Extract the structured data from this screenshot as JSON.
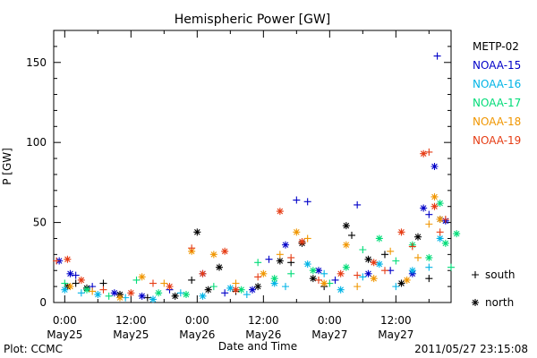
{
  "chart_data": {
    "type": "scatter",
    "title": "Hemispheric Power [GW]",
    "xlabel": "Date and Time",
    "ylabel": "P [GW]",
    "ylim": [
      0,
      170
    ],
    "yticks": [
      0,
      50,
      100,
      150
    ],
    "xlim_hours": [
      -2,
      70
    ],
    "xticks": [
      {
        "hour": 0,
        "time": "0:00",
        "day": "May25"
      },
      {
        "hour": 12,
        "time": "12:00",
        "day": "May25"
      },
      {
        "hour": 24,
        "time": "0:00",
        "day": "May26"
      },
      {
        "hour": 36,
        "time": "12:00",
        "day": "May26"
      },
      {
        "hour": 48,
        "time": "0:00",
        "day": "May27"
      },
      {
        "hour": 60,
        "time": "12:00",
        "day": "May27"
      }
    ],
    "legend_position": "right",
    "marker_legend": [
      {
        "symbol": "+",
        "label": "south"
      },
      {
        "symbol": "*",
        "label": "north"
      }
    ],
    "footer_left": "Plot: CCMC",
    "footer_right": "2011/05/27 23:15:08",
    "series": [
      {
        "name": "METP-02",
        "color": "#000000",
        "points": [
          {
            "h": 0.5,
            "y": 10,
            "m": "*"
          },
          {
            "h": 2,
            "y": 12,
            "m": "+"
          },
          {
            "h": 4,
            "y": 9,
            "m": "*"
          },
          {
            "h": 7,
            "y": 12,
            "m": "+"
          },
          {
            "h": 10,
            "y": 5,
            "m": "*"
          },
          {
            "h": 15,
            "y": 3,
            "m": "+"
          },
          {
            "h": 20,
            "y": 4,
            "m": "*"
          },
          {
            "h": 23,
            "y": 14,
            "m": "+"
          },
          {
            "h": 24,
            "y": 44,
            "m": "*"
          },
          {
            "h": 26,
            "y": 8,
            "m": "*"
          },
          {
            "h": 28,
            "y": 22,
            "m": "*"
          },
          {
            "h": 31,
            "y": 7,
            "m": "+"
          },
          {
            "h": 35,
            "y": 10,
            "m": "*"
          },
          {
            "h": 39,
            "y": 26,
            "m": "*"
          },
          {
            "h": 41,
            "y": 25,
            "m": "+"
          },
          {
            "h": 43,
            "y": 37,
            "m": "*"
          },
          {
            "h": 45,
            "y": 15,
            "m": "*"
          },
          {
            "h": 47,
            "y": 10,
            "m": "+"
          },
          {
            "h": 51,
            "y": 48,
            "m": "*"
          },
          {
            "h": 52,
            "y": 42,
            "m": "+"
          },
          {
            "h": 55,
            "y": 27,
            "m": "*"
          },
          {
            "h": 58,
            "y": 30,
            "m": "+"
          },
          {
            "h": 61,
            "y": 12,
            "m": "*"
          },
          {
            "h": 64,
            "y": 41,
            "m": "*"
          },
          {
            "h": 66,
            "y": 15,
            "m": "+"
          },
          {
            "h": 68,
            "y": 52,
            "m": "*"
          }
        ]
      },
      {
        "name": "NOAA-15",
        "color": "#0000c8",
        "points": [
          {
            "h": -1,
            "y": 26,
            "m": "*"
          },
          {
            "h": 1,
            "y": 18,
            "m": "*"
          },
          {
            "h": 2,
            "y": 17,
            "m": "+"
          },
          {
            "h": 5,
            "y": 10,
            "m": "+"
          },
          {
            "h": 9,
            "y": 6,
            "m": "*"
          },
          {
            "h": 14,
            "y": 4,
            "m": "*"
          },
          {
            "h": 19,
            "y": 8,
            "m": "+"
          },
          {
            "h": 25,
            "y": 18,
            "m": "*"
          },
          {
            "h": 29,
            "y": 6,
            "m": "+"
          },
          {
            "h": 34,
            "y": 8,
            "m": "*"
          },
          {
            "h": 37,
            "y": 27,
            "m": "+"
          },
          {
            "h": 40,
            "y": 36,
            "m": "*"
          },
          {
            "h": 42,
            "y": 64,
            "m": "+"
          },
          {
            "h": 44,
            "y": 63,
            "m": "+"
          },
          {
            "h": 46,
            "y": 20,
            "m": "*"
          },
          {
            "h": 49,
            "y": 14,
            "m": "+"
          },
          {
            "h": 53,
            "y": 61,
            "m": "+"
          },
          {
            "h": 55,
            "y": 18,
            "m": "*"
          },
          {
            "h": 59,
            "y": 20,
            "m": "+"
          },
          {
            "h": 63,
            "y": 18,
            "m": "*"
          },
          {
            "h": 65,
            "y": 59,
            "m": "*"
          },
          {
            "h": 66,
            "y": 55,
            "m": "+"
          },
          {
            "h": 67,
            "y": 85,
            "m": "*"
          },
          {
            "h": 67.5,
            "y": 154,
            "m": "+"
          },
          {
            "h": 69,
            "y": 51,
            "m": "*"
          }
        ]
      },
      {
        "name": "NOAA-16",
        "color": "#00b4e6",
        "points": [
          {
            "h": 0,
            "y": 8,
            "m": "*"
          },
          {
            "h": 3,
            "y": 6,
            "m": "+"
          },
          {
            "h": 6,
            "y": 5,
            "m": "*"
          },
          {
            "h": 11,
            "y": 3,
            "m": "+"
          },
          {
            "h": 16,
            "y": 2,
            "m": "*"
          },
          {
            "h": 21,
            "y": 6,
            "m": "+"
          },
          {
            "h": 25,
            "y": 4,
            "m": "*"
          },
          {
            "h": 30,
            "y": 9,
            "m": "*"
          },
          {
            "h": 33,
            "y": 5,
            "m": "+"
          },
          {
            "h": 38,
            "y": 12,
            "m": "*"
          },
          {
            "h": 40,
            "y": 10,
            "m": "+"
          },
          {
            "h": 44,
            "y": 24,
            "m": "*"
          },
          {
            "h": 47,
            "y": 18,
            "m": "+"
          },
          {
            "h": 50,
            "y": 8,
            "m": "*"
          },
          {
            "h": 54,
            "y": 16,
            "m": "+"
          },
          {
            "h": 57,
            "y": 24,
            "m": "*"
          },
          {
            "h": 60,
            "y": 10,
            "m": "+"
          },
          {
            "h": 63,
            "y": 20,
            "m": "*"
          },
          {
            "h": 66,
            "y": 22,
            "m": "+"
          },
          {
            "h": 68,
            "y": 40,
            "m": "*"
          }
        ]
      },
      {
        "name": "NOAA-17",
        "color": "#00dc78",
        "points": [
          {
            "h": 0,
            "y": 12,
            "m": "+"
          },
          {
            "h": 4,
            "y": 8,
            "m": "*"
          },
          {
            "h": 8,
            "y": 4,
            "m": "+"
          },
          {
            "h": 13,
            "y": 14,
            "m": "+"
          },
          {
            "h": 17,
            "y": 6,
            "m": "*"
          },
          {
            "h": 22,
            "y": 5,
            "m": "*"
          },
          {
            "h": 27,
            "y": 10,
            "m": "+"
          },
          {
            "h": 32,
            "y": 8,
            "m": "*"
          },
          {
            "h": 35,
            "y": 25,
            "m": "+"
          },
          {
            "h": 38,
            "y": 15,
            "m": "*"
          },
          {
            "h": 41,
            "y": 18,
            "m": "+"
          },
          {
            "h": 45,
            "y": 20,
            "m": "*"
          },
          {
            "h": 48,
            "y": 12,
            "m": "+"
          },
          {
            "h": 51,
            "y": 22,
            "m": "*"
          },
          {
            "h": 54,
            "y": 33,
            "m": "+"
          },
          {
            "h": 57,
            "y": 40,
            "m": "*"
          },
          {
            "h": 60,
            "y": 26,
            "m": "+"
          },
          {
            "h": 63,
            "y": 36,
            "m": "*"
          },
          {
            "h": 66,
            "y": 28,
            "m": "*"
          },
          {
            "h": 68,
            "y": 62,
            "m": "*"
          },
          {
            "h": 69,
            "y": 37,
            "m": "*"
          },
          {
            "h": 70,
            "y": 22,
            "m": "+"
          },
          {
            "h": 71,
            "y": 43,
            "m": "*"
          }
        ]
      },
      {
        "name": "NOAA-18",
        "color": "#f09600",
        "points": [
          {
            "h": 1,
            "y": 10,
            "m": "*"
          },
          {
            "h": 5,
            "y": 7,
            "m": "+"
          },
          {
            "h": 10,
            "y": 3,
            "m": "*"
          },
          {
            "h": 14,
            "y": 16,
            "m": "*"
          },
          {
            "h": 18,
            "y": 12,
            "m": "+"
          },
          {
            "h": 23,
            "y": 32,
            "m": "*"
          },
          {
            "h": 27,
            "y": 30,
            "m": "*"
          },
          {
            "h": 31,
            "y": 12,
            "m": "+"
          },
          {
            "h": 36,
            "y": 18,
            "m": "*"
          },
          {
            "h": 39,
            "y": 30,
            "m": "+"
          },
          {
            "h": 42,
            "y": 44,
            "m": "*"
          },
          {
            "h": 44,
            "y": 40,
            "m": "+"
          },
          {
            "h": 47,
            "y": 12,
            "m": "*"
          },
          {
            "h": 51,
            "y": 36,
            "m": "*"
          },
          {
            "h": 53,
            "y": 10,
            "m": "+"
          },
          {
            "h": 56,
            "y": 15,
            "m": "*"
          },
          {
            "h": 59,
            "y": 32,
            "m": "+"
          },
          {
            "h": 62,
            "y": 14,
            "m": "*"
          },
          {
            "h": 64,
            "y": 28,
            "m": "+"
          },
          {
            "h": 66,
            "y": 49,
            "m": "+"
          },
          {
            "h": 67,
            "y": 66,
            "m": "*"
          },
          {
            "h": 68,
            "y": 52,
            "m": "*"
          }
        ]
      },
      {
        "name": "NOAA-19",
        "color": "#e63c14",
        "points": [
          {
            "h": -1.5,
            "y": 26,
            "m": "+"
          },
          {
            "h": 0.5,
            "y": 27,
            "m": "*"
          },
          {
            "h": 3,
            "y": 14,
            "m": "*"
          },
          {
            "h": 7,
            "y": 8,
            "m": "+"
          },
          {
            "h": 12,
            "y": 6,
            "m": "*"
          },
          {
            "h": 16,
            "y": 12,
            "m": "+"
          },
          {
            "h": 19,
            "y": 10,
            "m": "*"
          },
          {
            "h": 23,
            "y": 34,
            "m": "+"
          },
          {
            "h": 25,
            "y": 18,
            "m": "*"
          },
          {
            "h": 29,
            "y": 32,
            "m": "*"
          },
          {
            "h": 31,
            "y": 8,
            "m": "*"
          },
          {
            "h": 35,
            "y": 16,
            "m": "+"
          },
          {
            "h": 39,
            "y": 57,
            "m": "*"
          },
          {
            "h": 41,
            "y": 28,
            "m": "+"
          },
          {
            "h": 43,
            "y": 38,
            "m": "*"
          },
          {
            "h": 46,
            "y": 14,
            "m": "+"
          },
          {
            "h": 50,
            "y": 18,
            "m": "*"
          },
          {
            "h": 53,
            "y": 17,
            "m": "+"
          },
          {
            "h": 56,
            "y": 25,
            "m": "*"
          },
          {
            "h": 58,
            "y": 20,
            "m": "+"
          },
          {
            "h": 61,
            "y": 44,
            "m": "*"
          },
          {
            "h": 63,
            "y": 35,
            "m": "+"
          },
          {
            "h": 65,
            "y": 93,
            "m": "*"
          },
          {
            "h": 66,
            "y": 94,
            "m": "+"
          },
          {
            "h": 67,
            "y": 60,
            "m": "*"
          },
          {
            "h": 68,
            "y": 44,
            "m": "+"
          },
          {
            "h": 69,
            "y": 52,
            "m": "+"
          }
        ]
      }
    ]
  }
}
